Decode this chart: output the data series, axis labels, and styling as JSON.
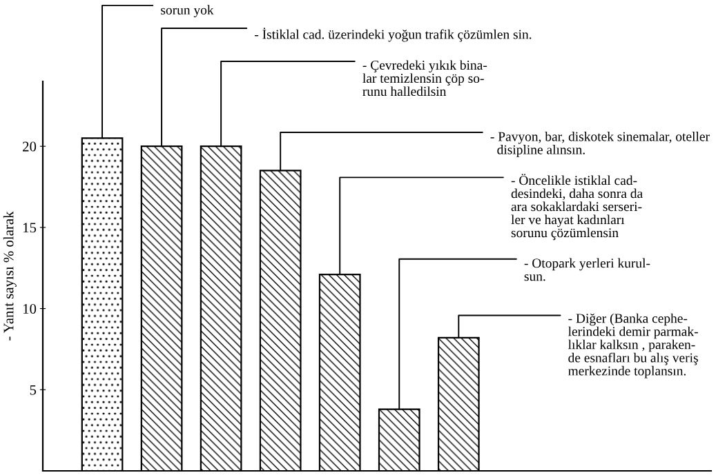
{
  "chart_data": {
    "type": "bar",
    "ylabel": "- Yanıt sayısı % olarak",
    "categories": [
      null,
      null,
      null,
      null,
      null,
      null,
      null
    ],
    "values": [
      20.5,
      20,
      20,
      18.5,
      12.1,
      3.8,
      8.2
    ],
    "color": "#000000",
    "ylim": [
      0,
      24
    ],
    "yticks": [
      5,
      10,
      15,
      20
    ],
    "tick_labels": "y",
    "grid": false,
    "legend": false,
    "annotations": [
      "sorun yok",
      "- İstiklal cad. üzerindeki yoğun trafik çözümlen sin.",
      "- Çevredeki yıkık bina-\nlar temizlensin çöp so-\nrunu halledilsin",
      "- Pavyon, bar, diskotek sinemalar, oteller\n  disipline alınsın.",
      "- Öncelikle istiklal cad-\ndesindeki, daha sonra da\nara sokaklardaki serseri-\nler ve hayat kadınları\nsorunu çözümlensin",
      "- Otopark yerleri kurul-\nsun.",
      "- Diğer (Banka cephe-\nlerindeki demir parmak-\nlıklar kalksın , paraken-\nde esnafları bu alış veriş\nmerkezinde toplansın."
    ]
  }
}
